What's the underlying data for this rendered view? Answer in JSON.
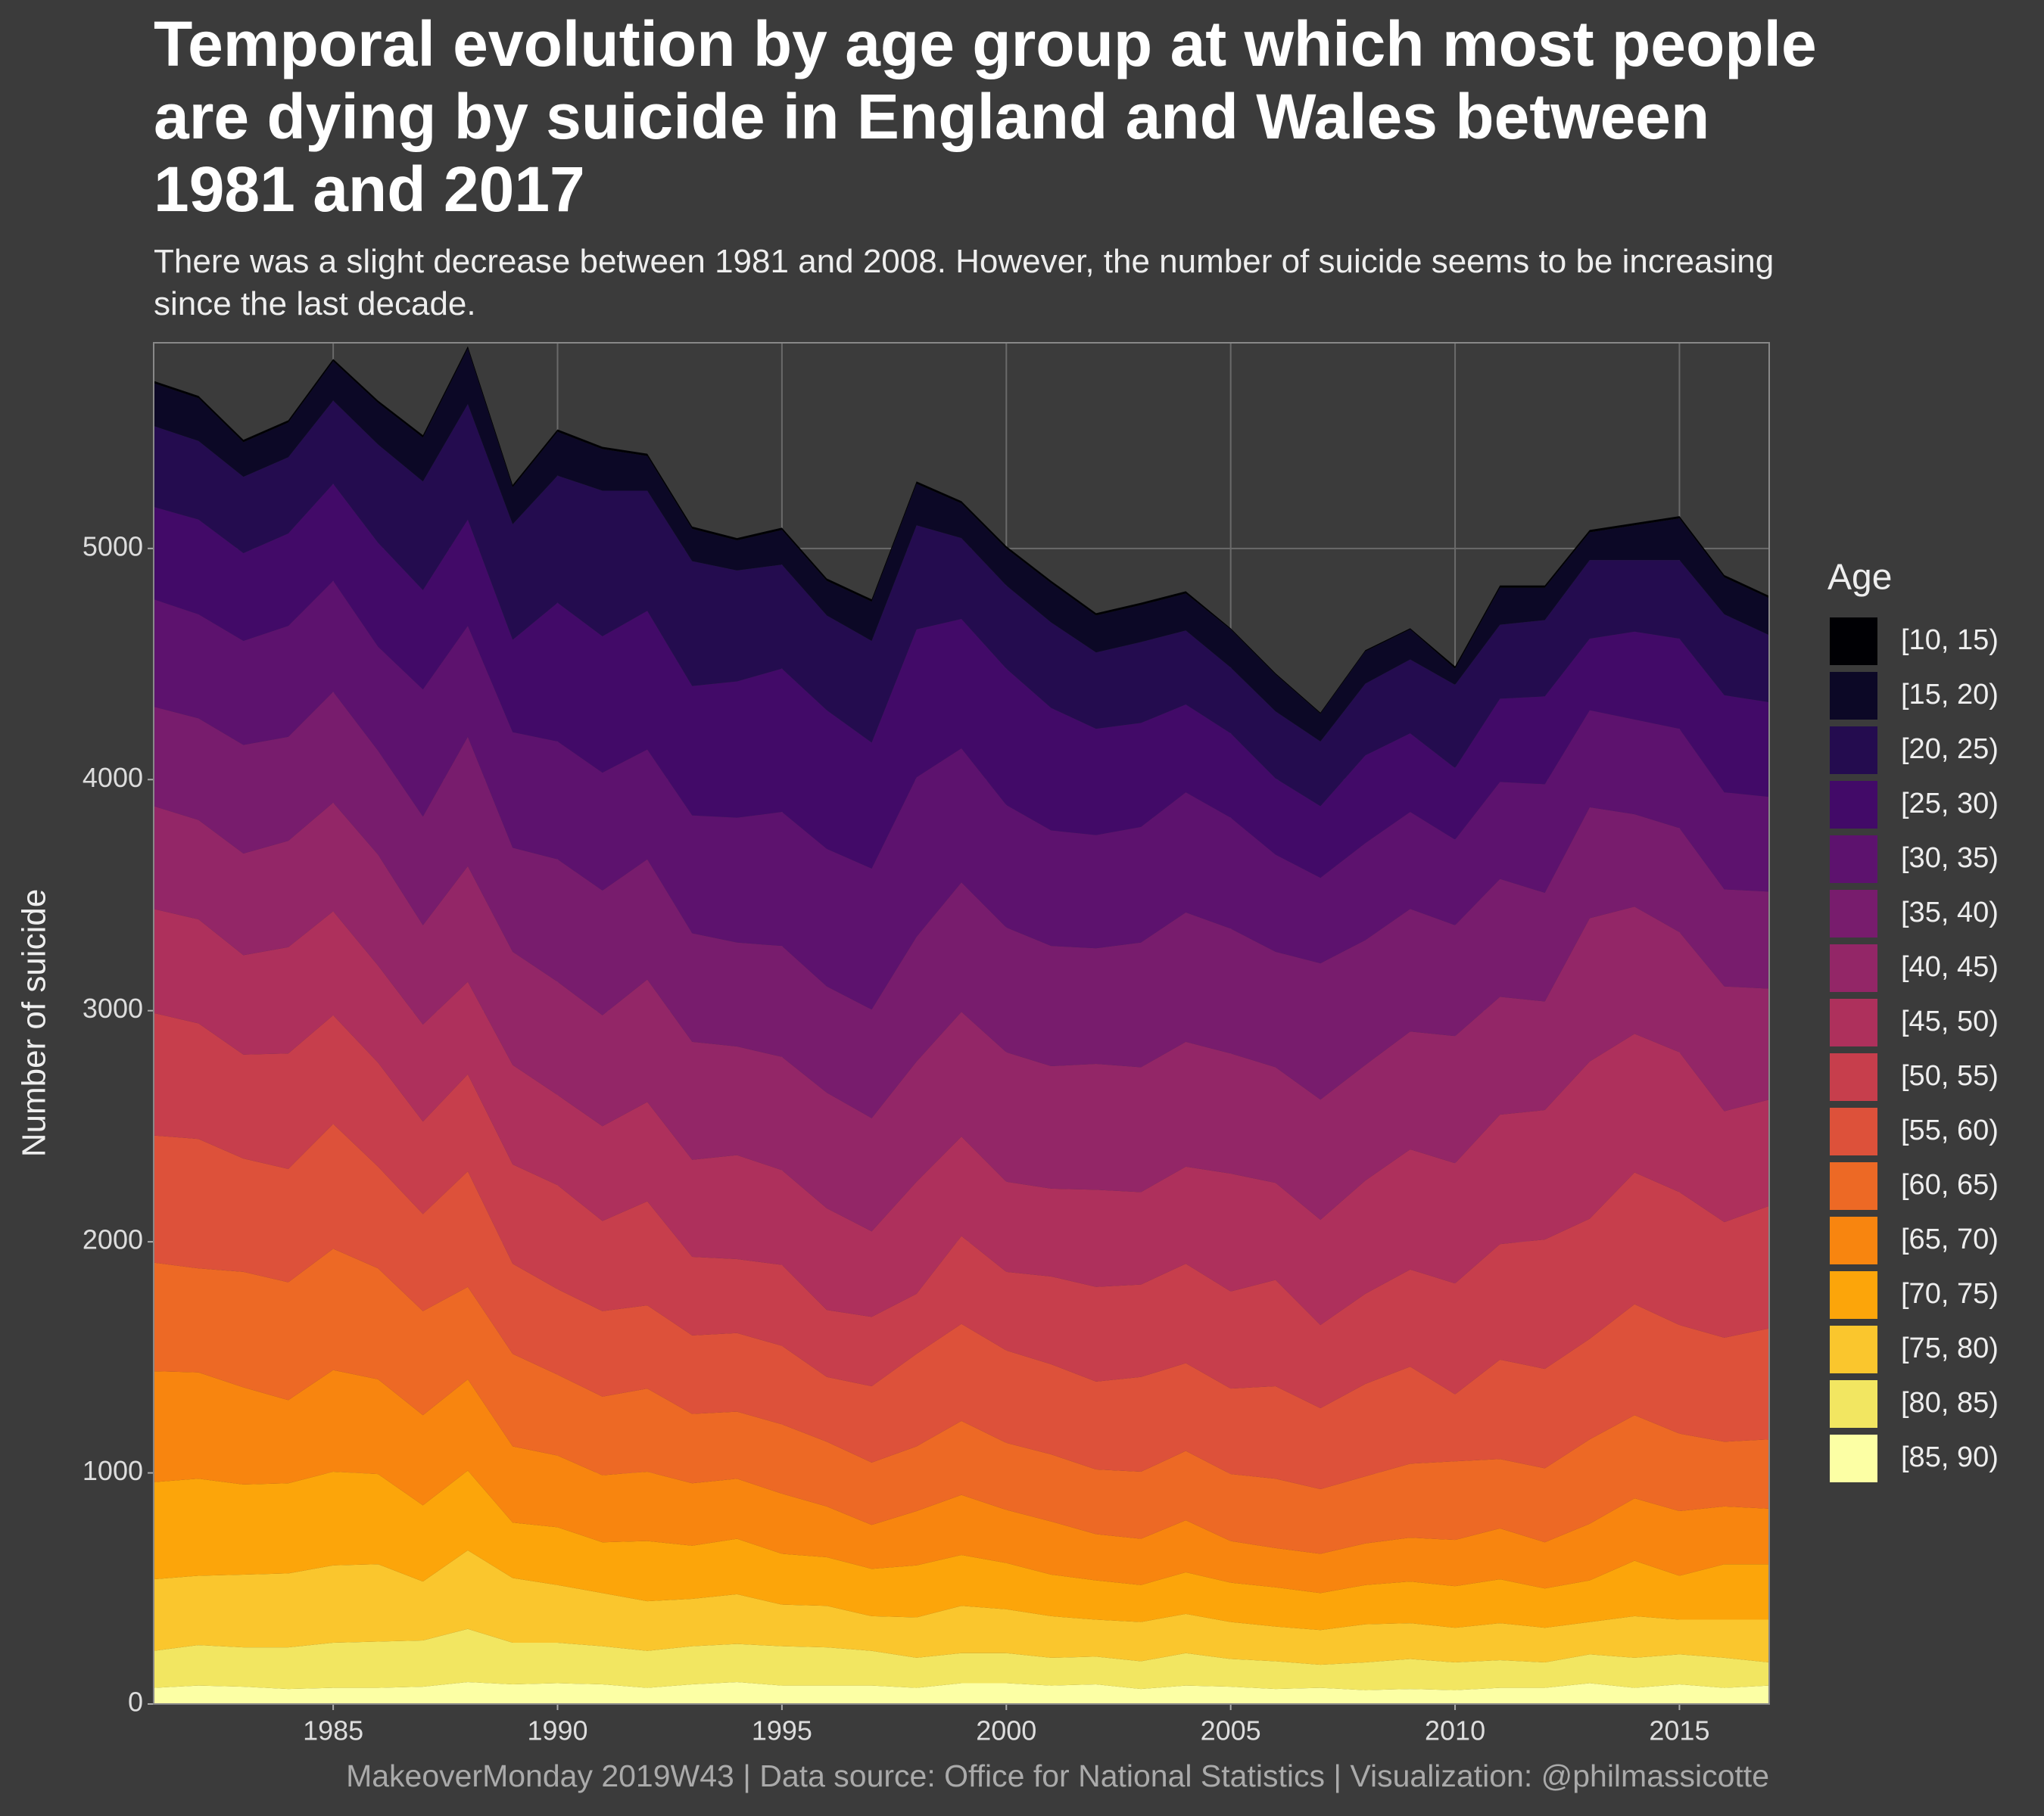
{
  "chart_data": {
    "type": "area",
    "stacked": true,
    "grid": true,
    "title": "Temporal evolution by age group at which most people are dying by suicide in England and Wales between 1981 and 2017",
    "subtitle": "There was a slight decrease between 1981 and 2008. However, the number of suicide seems to be increasing since the last decade.",
    "y_label": "Number of suicide",
    "legend_title": "Age",
    "legend_position": "right",
    "caption": "MakeoverMonday 2019W43 | Data source: Office for National Statistics | Visualization: @philmassicotte",
    "x": [
      1981,
      1982,
      1983,
      1984,
      1985,
      1986,
      1987,
      1988,
      1989,
      1990,
      1991,
      1992,
      1993,
      1994,
      1995,
      1996,
      1997,
      1998,
      1999,
      2000,
      2001,
      2002,
      2003,
      2004,
      2005,
      2006,
      2007,
      2008,
      2009,
      2010,
      2011,
      2012,
      2013,
      2014,
      2015,
      2016,
      2017
    ],
    "xlim": [
      1981,
      2017
    ],
    "xticks": [
      1985,
      1990,
      1995,
      2000,
      2005,
      2010,
      2015
    ],
    "ylim": [
      0,
      5890
    ],
    "yticks": [
      0,
      1000,
      2000,
      3000,
      4000,
      5000
    ],
    "series": [
      {
        "name": "[10, 15)",
        "color": "#000004",
        "values": [
          10,
          10,
          10,
          10,
          10,
          10,
          10,
          10,
          10,
          10,
          10,
          10,
          10,
          10,
          10,
          10,
          10,
          10,
          10,
          10,
          10,
          10,
          10,
          10,
          5,
          5,
          5,
          5,
          5,
          10,
          10,
          10,
          10,
          10,
          10,
          10,
          10
        ]
      },
      {
        "name": "[15, 20)",
        "color": "#0c0826",
        "values": [
          185,
          185,
          150,
          150,
          170,
          180,
          190,
          240,
          160,
          190,
          180,
          150,
          140,
          130,
          150,
          150,
          170,
          180,
          150,
          160,
          170,
          160,
          160,
          160,
          165,
          160,
          120,
          140,
          130,
          70,
          160,
          140,
          120,
          150,
          180,
          160,
          160
        ]
      },
      {
        "name": "[20, 25)",
        "color": "#240c4f",
        "values": [
          350,
          340,
          330,
          330,
          360,
          425,
          470,
          500,
          500,
          550,
          630,
          520,
          540,
          480,
          450,
          410,
          440,
          450,
          350,
          360,
          370,
          330,
          350,
          320,
          285,
          290,
          280,
          310,
          320,
          360,
          320,
          330,
          340,
          310,
          340,
          350,
          290
        ]
      },
      {
        "name": "[25, 30)",
        "color": "#420a68",
        "values": [
          400,
          410,
          380,
          400,
          420,
          450,
          430,
          460,
          400,
          600,
          590,
          600,
          560,
          590,
          620,
          600,
          545,
          640,
          560,
          590,
          530,
          460,
          450,
          380,
          365,
          330,
          310,
          380,
          340,
          310,
          360,
          380,
          310,
          380,
          390,
          420,
          410
        ]
      },
      {
        "name": "[30, 35)",
        "color": "#5d126e",
        "values": [
          465,
          450,
          450,
          480,
          480,
          450,
          550,
          480,
          500,
          510,
          510,
          475,
          510,
          540,
          580,
          595,
          610,
          690,
          580,
          530,
          500,
          490,
          500,
          520,
          480,
          420,
          370,
          420,
          420,
          370,
          420,
          470,
          420,
          410,
          430,
          420,
          410
        ]
      },
      {
        "name": "[35, 40)",
        "color": "#781c6d",
        "values": [
          430,
          440,
          470,
          450,
          480,
          450,
          470,
          560,
          450,
          530,
          540,
          520,
          470,
          450,
          480,
          460,
          470,
          540,
          560,
          540,
          520,
          500,
          540,
          560,
          540,
          500,
          590,
          540,
          530,
          480,
          510,
          470,
          480,
          400,
          450,
          420,
          420
        ]
      },
      {
        "name": "[40, 45)",
        "color": "#932667",
        "values": [
          445,
          430,
          440,
          460,
          470,
          480,
          430,
          500,
          490,
          490,
          480,
          530,
          510,
          470,
          490,
          500,
          490,
          520,
          540,
          560,
          530,
          545,
          540,
          540,
          520,
          500,
          520,
          500,
          510,
          550,
          510,
          470,
          620,
          550,
          520,
          540,
          480
        ]
      },
      {
        "name": "[45, 50)",
        "color": "#ae305c",
        "values": [
          450,
          450,
          430,
          460,
          450,
          420,
          420,
          400,
          430,
          390,
          410,
          430,
          420,
          450,
          410,
          440,
          370,
          485,
          430,
          390,
          380,
          420,
          400,
          420,
          510,
          420,
          455,
          490,
          520,
          520,
          560,
          560,
          680,
          600,
          605,
          480,
          460
        ]
      },
      {
        "name": "[50, 55)",
        "color": "#c73e4c",
        "values": [
          530,
          500,
          450,
          500,
          470,
          450,
          400,
          420,
          430,
          450,
          390,
          450,
          340,
          320,
          350,
          290,
          300,
          260,
          380,
          340,
          380,
          410,
          400,
          430,
          420,
          460,
          360,
          390,
          420,
          480,
          500,
          560,
          520,
          570,
          575,
          500,
          530
        ]
      },
      {
        "name": "[55, 60)",
        "color": "#dd513a",
        "values": [
          550,
          560,
          490,
          490,
          540,
          440,
          420,
          500,
          390,
          370,
          370,
          360,
          340,
          340,
          340,
          280,
          330,
          400,
          420,
          400,
          390,
          380,
          410,
          380,
          370,
          400,
          350,
          400,
          420,
          290,
          430,
          430,
          435,
          480,
          470,
          450,
          480
        ]
      },
      {
        "name": "[60, 65)",
        "color": "#ed6925",
        "values": [
          470,
          450,
          500,
          510,
          525,
          480,
          450,
          400,
          400,
          350,
          340,
          360,
          300,
          290,
          300,
          280,
          270,
          280,
          320,
          290,
          290,
          280,
          290,
          300,
          290,
          300,
          280,
          290,
          320,
          340,
          300,
          320,
          365,
          360,
          335,
          280,
          300
        ]
      },
      {
        "name": "[65, 70)",
        "color": "#f8850f",
        "values": [
          480,
          460,
          420,
          360,
          440,
          410,
          390,
          395,
          330,
          310,
          290,
          300,
          270,
          260,
          260,
          220,
          190,
          235,
          260,
          230,
          230,
          200,
          200,
          225,
          180,
          170,
          170,
          180,
          190,
          200,
          220,
          200,
          245,
          270,
          280,
          250,
          240
        ]
      },
      {
        "name": "[70, 75)",
        "color": "#fca50a",
        "values": [
          420,
          420,
          390,
          390,
          405,
          390,
          330,
          345,
          240,
          250,
          220,
          260,
          230,
          240,
          220,
          210,
          205,
          225,
          220,
          200,
          180,
          170,
          160,
          180,
          170,
          170,
          160,
          170,
          180,
          180,
          190,
          170,
          180,
          240,
          190,
          240,
          240
        ]
      },
      {
        "name": "[75, 80)",
        "color": "#fac62d",
        "values": [
          310,
          300,
          315,
          320,
          335,
          335,
          255,
          340,
          280,
          250,
          230,
          215,
          205,
          215,
          180,
          180,
          150,
          175,
          205,
          190,
          180,
          160,
          170,
          170,
          160,
          150,
          150,
          165,
          155,
          150,
          160,
          150,
          140,
          180,
          150,
          165,
          185
        ]
      },
      {
        "name": "[80, 85)",
        "color": "#f2e661",
        "values": [
          160,
          175,
          170,
          180,
          195,
          200,
          200,
          230,
          180,
          175,
          165,
          160,
          165,
          165,
          170,
          165,
          150,
          130,
          130,
          130,
          120,
          120,
          120,
          140,
          120,
          120,
          100,
          120,
          130,
          120,
          120,
          110,
          125,
          130,
          130,
          130,
          100
        ]
      },
      {
        "name": "[85, 90)",
        "color": "#fcffa4",
        "values": [
          70,
          80,
          75,
          65,
          70,
          70,
          75,
          95,
          85,
          90,
          85,
          70,
          85,
          95,
          80,
          80,
          80,
          70,
          90,
          90,
          80,
          85,
          65,
          80,
          75,
          65,
          70,
          60,
          65,
          60,
          70,
          70,
          90,
          70,
          85,
          70,
          80
        ]
      }
    ]
  }
}
